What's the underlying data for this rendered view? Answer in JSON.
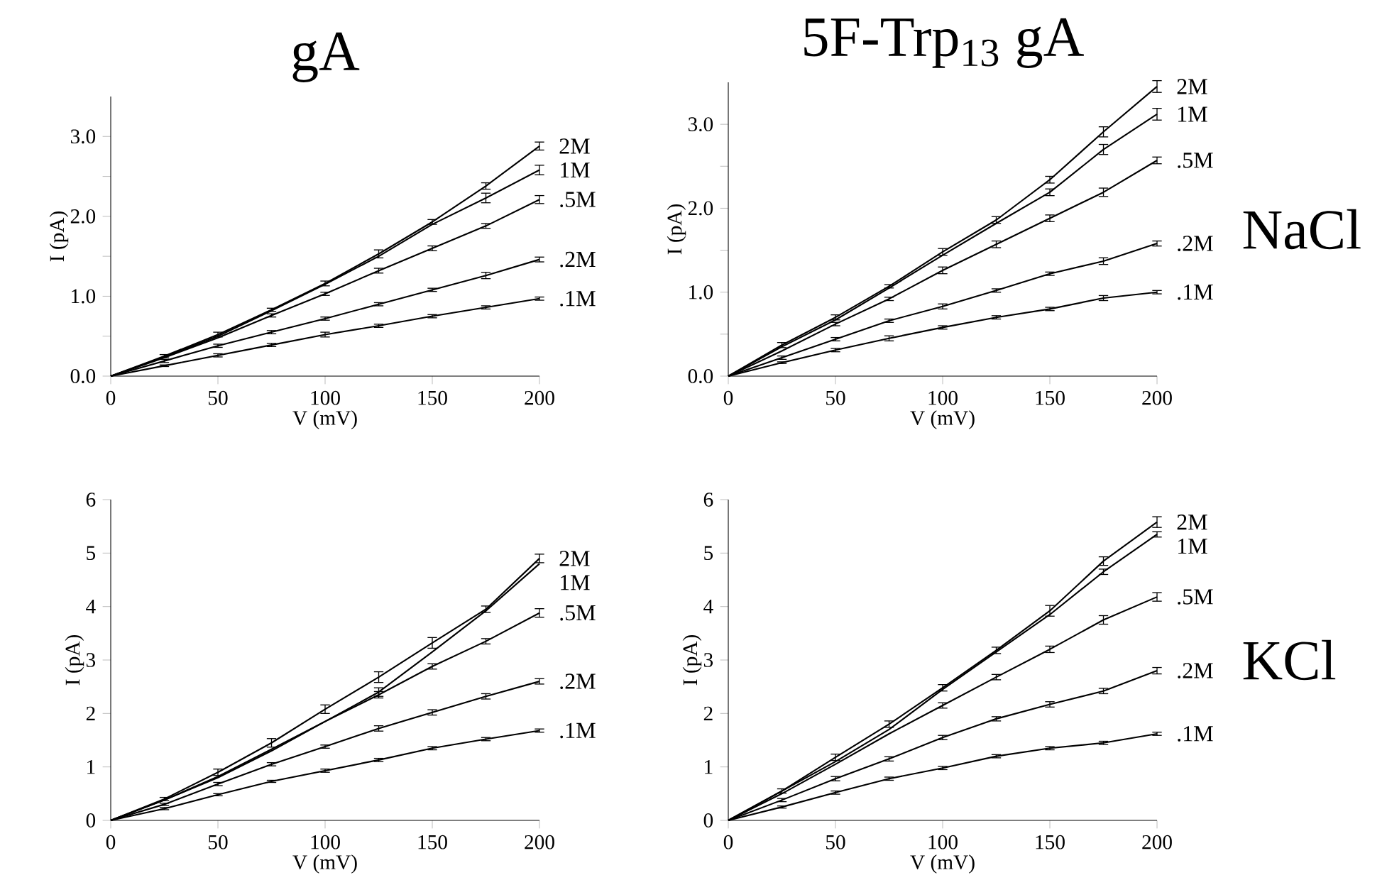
{
  "chart_data": [
    {
      "type": "line",
      "title": "gA",
      "xlabel": "V (mV)",
      "ylabel": "I (pA)",
      "xlim": [
        0,
        200
      ],
      "ylim": [
        0,
        3.5
      ],
      "xticks": [
        0,
        50,
        100,
        150,
        200
      ],
      "yticks": [
        {
          "value": 0,
          "label": "0.0"
        },
        {
          "value": 0.5,
          "label": null
        },
        {
          "value": 1,
          "label": "1.0"
        },
        {
          "value": 1.5,
          "label": null
        },
        {
          "value": 2,
          "label": "2.0"
        },
        {
          "value": 2.5,
          "label": null
        },
        {
          "value": 3,
          "label": "3.0"
        }
      ],
      "x": [
        0,
        25,
        50,
        75,
        100,
        125,
        150,
        175,
        200
      ],
      "series": [
        {
          "name": "2M",
          "color": "#000000",
          "values": [
            0,
            0.25,
            0.52,
            0.83,
            1.16,
            1.53,
            1.93,
            2.38,
            2.88
          ],
          "errors": [
            null,
            0.02,
            0.03,
            0.02,
            0.03,
            0.05,
            0.03,
            0.04,
            0.05
          ]
        },
        {
          "name": "1M",
          "color": "#000000",
          "values": [
            0,
            0.24,
            0.5,
            0.82,
            1.15,
            1.5,
            1.9,
            2.23,
            2.58
          ],
          "errors": [
            null,
            null,
            null,
            null,
            null,
            null,
            null,
            0.06,
            0.06
          ]
        },
        {
          "name": ".5M",
          "color": "#000000",
          "values": [
            0,
            0.23,
            0.48,
            0.76,
            1.03,
            1.32,
            1.6,
            1.88,
            2.21
          ],
          "errors": [
            null,
            null,
            null,
            0.02,
            0.02,
            0.03,
            0.03,
            0.03,
            0.05
          ]
        },
        {
          "name": ".2M",
          "color": "#000000",
          "values": [
            0,
            0.19,
            0.38,
            0.55,
            0.72,
            0.9,
            1.08,
            1.26,
            1.46
          ],
          "errors": [
            null,
            0.02,
            0.02,
            0.02,
            0.02,
            0.02,
            0.02,
            0.04,
            0.03
          ]
        },
        {
          "name": ".1M",
          "color": "#000000",
          "values": [
            0,
            0.13,
            0.26,
            0.39,
            0.52,
            0.63,
            0.75,
            0.86,
            0.97
          ],
          "errors": [
            null,
            0.01,
            0.02,
            0.02,
            0.03,
            0.02,
            0.02,
            0.02,
            0.02
          ]
        }
      ]
    },
    {
      "type": "line",
      "title": "5F-Trp$_{13}$ gA",
      "xlabel": "V (mV)",
      "ylabel": "I (pA)",
      "annotations": [
        "NaCl"
      ],
      "xlim": [
        0,
        200
      ],
      "ylim": [
        0,
        3.5
      ],
      "xticks": [
        0,
        50,
        100,
        150,
        200
      ],
      "yticks": [
        {
          "value": 0,
          "label": "0.0"
        },
        {
          "value": 0.5,
          "label": null
        },
        {
          "value": 1,
          "label": "1.0"
        },
        {
          "value": 1.5,
          "label": null
        },
        {
          "value": 2,
          "label": "2.0"
        },
        {
          "value": 2.5,
          "label": null
        },
        {
          "value": 3,
          "label": "3.0"
        }
      ],
      "x": [
        0,
        25,
        50,
        75,
        100,
        125,
        150,
        175,
        200
      ],
      "series": [
        {
          "name": "2M",
          "color": "#000000",
          "values": [
            0,
            0.37,
            0.7,
            1.07,
            1.48,
            1.86,
            2.34,
            2.91,
            3.45
          ],
          "errors": [
            null,
            0.03,
            0.03,
            0.02,
            0.04,
            0.04,
            0.04,
            0.06,
            0.07
          ]
        },
        {
          "name": "1M",
          "color": "#000000",
          "values": [
            0,
            0.35,
            0.67,
            1.05,
            1.44,
            1.82,
            2.19,
            2.7,
            3.12
          ],
          "errors": [
            null,
            null,
            null,
            null,
            null,
            null,
            0.04,
            0.06,
            0.07
          ]
        },
        {
          "name": ".5M",
          "color": "#000000",
          "values": [
            0,
            0.3,
            0.62,
            0.92,
            1.26,
            1.57,
            1.88,
            2.19,
            2.57
          ],
          "errors": [
            null,
            null,
            0.02,
            0.02,
            0.04,
            0.04,
            0.04,
            0.05,
            0.04
          ]
        },
        {
          "name": ".2M",
          "color": "#000000",
          "values": [
            0,
            0.22,
            0.44,
            0.66,
            0.83,
            1.02,
            1.22,
            1.37,
            1.58
          ],
          "errors": [
            null,
            0.02,
            0.02,
            0.02,
            0.03,
            0.02,
            0.02,
            0.04,
            0.03
          ]
        },
        {
          "name": ".1M",
          "color": "#000000",
          "values": [
            0,
            0.16,
            0.31,
            0.45,
            0.58,
            0.7,
            0.8,
            0.93,
            1.0
          ],
          "errors": [
            null,
            0.01,
            0.02,
            0.03,
            0.02,
            0.02,
            0.02,
            0.03,
            0.02
          ]
        }
      ]
    },
    {
      "type": "line",
      "xlabel": "V (mV)",
      "ylabel": "I (pA)",
      "xlim": [
        0,
        200
      ],
      "ylim": [
        0,
        6
      ],
      "xticks": [
        0,
        50,
        100,
        150,
        200
      ],
      "yticks": [
        0,
        1,
        2,
        3,
        4,
        5,
        6
      ],
      "x": [
        0,
        25,
        50,
        75,
        100,
        125,
        150,
        175,
        200
      ],
      "series": [
        {
          "name": "2M",
          "color": "#000000",
          "values": [
            0,
            0.4,
            0.9,
            1.45,
            2.08,
            2.68,
            3.32,
            3.95,
            4.9
          ],
          "errors": [
            null,
            0.03,
            0.06,
            0.08,
            0.08,
            0.1,
            0.1,
            0.06,
            0.08
          ]
        },
        {
          "name": "1M",
          "color": "#000000",
          "values": [
            0,
            0.38,
            0.82,
            1.33,
            1.85,
            2.4,
            3.15,
            3.92,
            4.8
          ],
          "errors": [
            null,
            null,
            null,
            null,
            null,
            0.08,
            null,
            null,
            null
          ]
        },
        {
          "name": ".5M",
          "color": "#000000",
          "values": [
            0,
            0.38,
            0.8,
            1.3,
            1.85,
            2.35,
            2.88,
            3.35,
            3.88
          ],
          "errors": [
            null,
            null,
            null,
            null,
            null,
            0.06,
            0.05,
            0.05,
            0.08
          ]
        },
        {
          "name": ".2M",
          "color": "#000000",
          "values": [
            0,
            0.3,
            0.68,
            1.05,
            1.38,
            1.72,
            2.02,
            2.32,
            2.6
          ],
          "errors": [
            null,
            0.02,
            0.03,
            0.03,
            0.03,
            0.05,
            0.05,
            0.05,
            0.05
          ]
        },
        {
          "name": ".1M",
          "color": "#000000",
          "values": [
            0,
            0.22,
            0.48,
            0.73,
            0.93,
            1.13,
            1.35,
            1.52,
            1.68
          ],
          "errors": [
            null,
            0.02,
            0.02,
            0.02,
            0.03,
            0.03,
            0.03,
            0.03,
            0.03
          ]
        }
      ]
    },
    {
      "type": "line",
      "xlabel": "V (mV)",
      "ylabel": "I (pA)",
      "annotations": [
        "KCl"
      ],
      "xlim": [
        0,
        200
      ],
      "ylim": [
        0,
        6
      ],
      "xticks": [
        0,
        50,
        100,
        150,
        200
      ],
      "yticks": [
        0,
        1,
        2,
        3,
        4,
        5,
        6
      ],
      "x": [
        0,
        25,
        50,
        75,
        100,
        125,
        150,
        175,
        200
      ],
      "series": [
        {
          "name": "2M",
          "color": "#000000",
          "values": [
            0,
            0.55,
            1.18,
            1.8,
            2.48,
            3.18,
            3.92,
            4.85,
            5.58
          ],
          "errors": [
            null,
            0.04,
            0.06,
            0.06,
            0.06,
            0.06,
            0.1,
            0.08,
            0.1
          ]
        },
        {
          "name": "1M",
          "color": "#000000",
          "values": [
            0,
            0.55,
            1.1,
            1.7,
            2.45,
            3.15,
            3.85,
            4.65,
            5.35
          ],
          "errors": [
            null,
            null,
            null,
            null,
            null,
            null,
            null,
            0.05,
            0.05
          ]
        },
        {
          "name": ".5M",
          "color": "#000000",
          "values": [
            0,
            0.5,
            1.05,
            1.62,
            2.15,
            2.68,
            3.2,
            3.75,
            4.18
          ],
          "errors": [
            null,
            null,
            null,
            null,
            0.05,
            0.05,
            0.06,
            0.08,
            0.08
          ]
        },
        {
          "name": ".2M",
          "color": "#000000",
          "values": [
            0,
            0.38,
            0.78,
            1.15,
            1.55,
            1.9,
            2.17,
            2.42,
            2.8
          ],
          "errors": [
            null,
            0.03,
            0.04,
            0.04,
            0.04,
            0.04,
            0.05,
            0.05,
            0.06
          ]
        },
        {
          "name": ".1M",
          "color": "#000000",
          "values": [
            0,
            0.25,
            0.52,
            0.78,
            0.98,
            1.2,
            1.35,
            1.45,
            1.62
          ],
          "errors": [
            null,
            0.02,
            0.03,
            0.03,
            0.03,
            0.03,
            0.03,
            0.03,
            0.03
          ]
        }
      ]
    }
  ]
}
